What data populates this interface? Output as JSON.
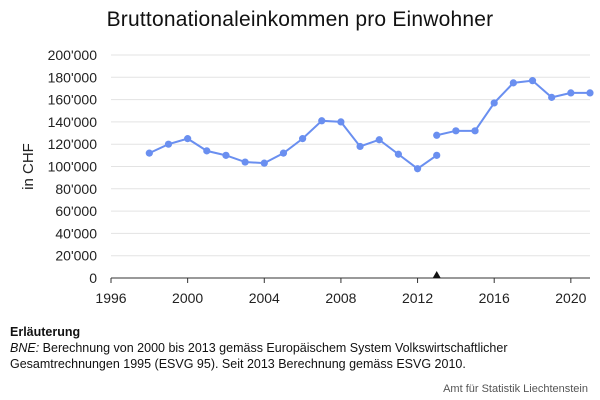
{
  "chart_data": {
    "type": "line",
    "title": "Bruttonationaleinkommen pro Einwohner",
    "xlabel": "",
    "ylabel": "in CHF",
    "xlim": [
      1996,
      2021
    ],
    "ylim": [
      0,
      200000
    ],
    "xticks": [
      "1996",
      "2000",
      "2004",
      "2008",
      "2012",
      "2016",
      "2020"
    ],
    "yticks": [
      "0",
      "20'000",
      "40'000",
      "60'000",
      "80'000",
      "100'000",
      "120'000",
      "140'000",
      "160'000",
      "180'000",
      "200'000"
    ],
    "grid": true,
    "legend": "none",
    "color": "#6a8ff0",
    "series": [
      {
        "x": [
          1998,
          1999,
          2000,
          2001,
          2002,
          2003,
          2004,
          2005,
          2006,
          2007,
          2008,
          2009,
          2010,
          2011,
          2012,
          2013
        ],
        "values": [
          112000,
          120000,
          125000,
          114000,
          110000,
          104000,
          103000,
          112000,
          125000,
          141000,
          140000,
          118000,
          124000,
          111000,
          98000,
          110000
        ]
      },
      {
        "x": [
          2013,
          2014,
          2015,
          2016,
          2017,
          2018,
          2019,
          2020,
          2021
        ],
        "values": [
          128000,
          132000,
          132000,
          157000,
          175000,
          177000,
          162000,
          166000,
          166000
        ]
      }
    ],
    "annotations": [
      {
        "type": "marker",
        "shape": "triangle",
        "x": 2013,
        "y": 0
      }
    ]
  },
  "notes": {
    "heading": "Erläuterung",
    "abbr": "BNE:",
    "text": " Berechnung von 2000 bis 2013 gemäss Europäischem System Volkswirtschaftlicher Gesamtrechnungen 1995 (ESVG 95). Seit 2013 Berechnung gemäss ESVG 2010."
  },
  "source": "Amt für Statistik Liechtenstein"
}
